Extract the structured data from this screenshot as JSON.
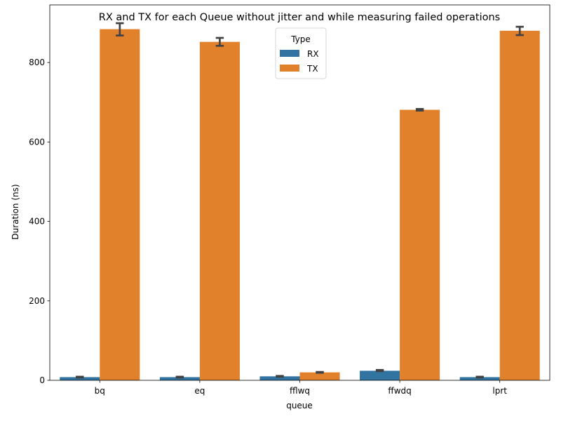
{
  "chart_data": {
    "type": "bar",
    "title": "RX and TX for each Queue without jitter and while measuring failed operations",
    "xlabel": "queue",
    "ylabel": "Duration (ns)",
    "categories": [
      "bq",
      "eq",
      "fflwq",
      "ffwdq",
      "lprt"
    ],
    "ylim": [
      0,
      945
    ],
    "yticks": [
      0,
      200,
      400,
      600,
      800
    ],
    "grid": false,
    "legend": {
      "title": "Type",
      "placement": "top-center"
    },
    "series": [
      {
        "name": "RX",
        "color": "#3274a1",
        "values": [
          8,
          8,
          10,
          24,
          8
        ],
        "err_low": [
          7,
          7,
          9,
          23,
          7
        ],
        "err_high": [
          9,
          9,
          11,
          26,
          9
        ]
      },
      {
        "name": "TX",
        "color": "#e1812c",
        "values": [
          884,
          852,
          20,
          681,
          880
        ],
        "err_low": [
          868,
          842,
          19,
          679,
          869
        ],
        "err_high": [
          899,
          862,
          21,
          683,
          890
        ]
      }
    ]
  }
}
